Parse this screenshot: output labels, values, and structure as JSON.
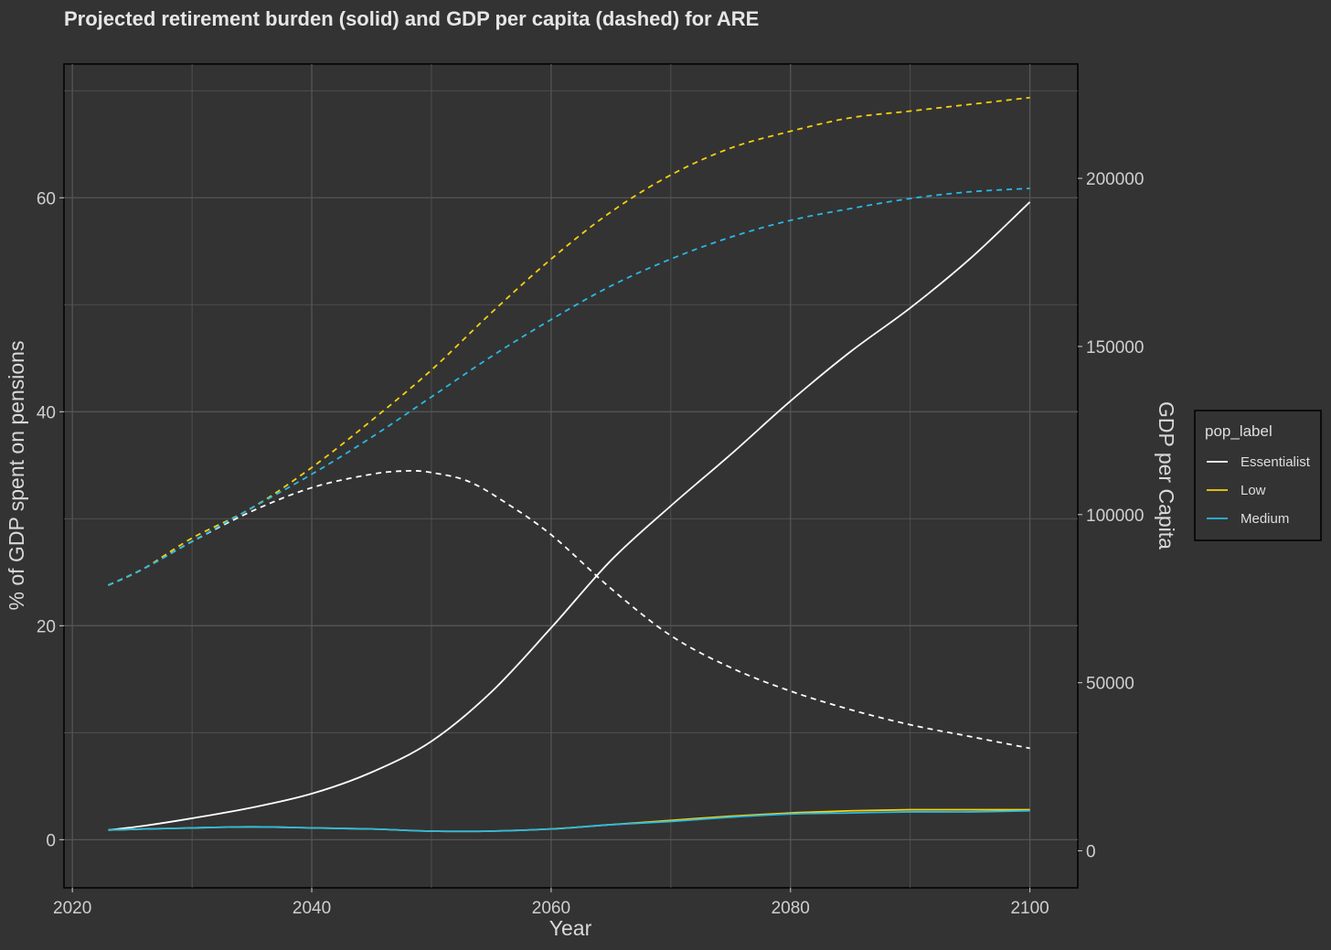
{
  "chart_data": {
    "type": "line",
    "title": "Projected retirement burden (solid) and GDP per capita (dashed) for ARE",
    "xlabel": "Year",
    "ylabel": "% of GDP spent on pensions",
    "y2label": "GDP per Capita",
    "xlim": [
      2019.3,
      2104
    ],
    "ylim": [
      -4.5,
      72.5
    ],
    "y2lim": [
      -11000,
      234000
    ],
    "x_ticks": [
      "2020",
      "2040",
      "2060",
      "2080",
      "2100"
    ],
    "y_ticks": [
      "0",
      "20",
      "40",
      "60"
    ],
    "y2_ticks": [
      "0",
      "50000",
      "100000",
      "150000",
      "200000"
    ],
    "grid": true,
    "legend": {
      "title": "pop_label",
      "position": "right",
      "entries": [
        "Essentialist",
        "Low",
        "Medium"
      ]
    },
    "colors": {
      "background": "#333333",
      "grid": "#555555",
      "Essentialist": "#ffffff",
      "Low": "#f5d10f",
      "Medium": "#29b9e3"
    },
    "series": [
      {
        "name": "Essentialist",
        "metric": "pension_pct",
        "axis": "left",
        "style": "solid",
        "x": [
          2023,
          2026,
          2030,
          2035,
          2040,
          2045,
          2050,
          2055,
          2060,
          2065,
          2070,
          2075,
          2080,
          2085,
          2090,
          2095,
          2100
        ],
        "values": [
          0.9,
          1.3,
          2.0,
          3.0,
          4.3,
          6.3,
          9.2,
          13.8,
          19.8,
          26.1,
          31.2,
          36.0,
          41.0,
          45.6,
          49.7,
          54.3,
          59.6
        ]
      },
      {
        "name": "Low",
        "metric": "pension_pct",
        "axis": "left",
        "style": "solid",
        "x": [
          2023,
          2026,
          2030,
          2035,
          2040,
          2045,
          2050,
          2055,
          2060,
          2065,
          2070,
          2075,
          2080,
          2085,
          2090,
          2095,
          2100
        ],
        "values": [
          0.9,
          1.0,
          1.1,
          1.2,
          1.1,
          1.0,
          0.8,
          0.8,
          1.0,
          1.4,
          1.8,
          2.2,
          2.5,
          2.7,
          2.8,
          2.8,
          2.8
        ]
      },
      {
        "name": "Medium",
        "metric": "pension_pct",
        "axis": "left",
        "style": "solid",
        "x": [
          2023,
          2026,
          2030,
          2035,
          2040,
          2045,
          2050,
          2055,
          2060,
          2065,
          2070,
          2075,
          2080,
          2085,
          2090,
          2095,
          2100
        ],
        "values": [
          0.9,
          1.0,
          1.1,
          1.2,
          1.1,
          1.0,
          0.8,
          0.8,
          1.0,
          1.4,
          1.7,
          2.1,
          2.4,
          2.5,
          2.6,
          2.6,
          2.7
        ]
      },
      {
        "name": "Essentialist",
        "metric": "gdp_per_capita",
        "axis": "right",
        "style": "dashed",
        "x": [
          2023,
          2026,
          2030,
          2035,
          2040,
          2045,
          2048,
          2050,
          2053,
          2056,
          2060,
          2065,
          2070,
          2075,
          2080,
          2085,
          2090,
          2095,
          2100
        ],
        "values": [
          79000,
          84000,
          92000,
          101000,
          108000,
          112000,
          113000,
          112500,
          110000,
          104000,
          94000,
          78000,
          64000,
          54500,
          47500,
          42000,
          37500,
          34000,
          30500
        ]
      },
      {
        "name": "Low",
        "metric": "gdp_per_capita",
        "axis": "right",
        "style": "dashed",
        "x": [
          2023,
          2026,
          2030,
          2035,
          2040,
          2045,
          2050,
          2055,
          2060,
          2065,
          2070,
          2075,
          2080,
          2085,
          2090,
          2095,
          2100
        ],
        "values": [
          79000,
          84000,
          93000,
          102000,
          114000,
          128000,
          143000,
          160000,
          176000,
          190000,
          201000,
          209000,
          214000,
          218000,
          220000,
          222000,
          224000
        ]
      },
      {
        "name": "Medium",
        "metric": "gdp_per_capita",
        "axis": "right",
        "style": "dashed",
        "x": [
          2023,
          2026,
          2030,
          2035,
          2040,
          2045,
          2050,
          2055,
          2060,
          2065,
          2070,
          2075,
          2080,
          2085,
          2090,
          2095,
          2100
        ],
        "values": [
          79000,
          84000,
          92000,
          102000,
          112000,
          123000,
          135000,
          147000,
          158000,
          168000,
          176000,
          182500,
          187500,
          191000,
          194000,
          196000,
          197000
        ]
      }
    ]
  }
}
